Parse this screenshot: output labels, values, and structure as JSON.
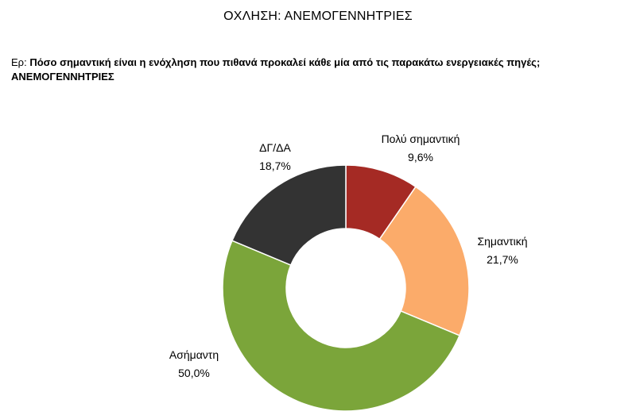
{
  "header": {
    "title": "ΟΧΛΗΣΗ: ΑΝΕΜΟΓΕΝΝΗΤΡΙΕΣ"
  },
  "question": {
    "prefix": "Ερ:",
    "text": "Πόσο σημαντική είναι η ενόχληση που πιθανά προκαλεί κάθε μία από τις παρακάτω ενεργειακές πηγές;",
    "subject": "ΑΝΕΜΟΓΕΝΝΗΤΡΙΕΣ"
  },
  "chart_data": {
    "type": "pie",
    "variant": "donut",
    "start": "top",
    "direction": "clockwise",
    "slices": [
      {
        "label": "Πολύ σημαντική",
        "value": 9.6,
        "value_label": "9,6%",
        "color": "#a52a24"
      },
      {
        "label": "Σημαντική",
        "value": 21.7,
        "value_label": "21,7%",
        "color": "#fbab6a"
      },
      {
        "label": "Ασήμαντη",
        "value": 50.0,
        "value_label": "50,0%",
        "color": "#7ba53a"
      },
      {
        "label": "ΔΓ/ΔΑ",
        "value": 18.7,
        "value_label": "18,7%",
        "color": "#333333"
      }
    ]
  }
}
